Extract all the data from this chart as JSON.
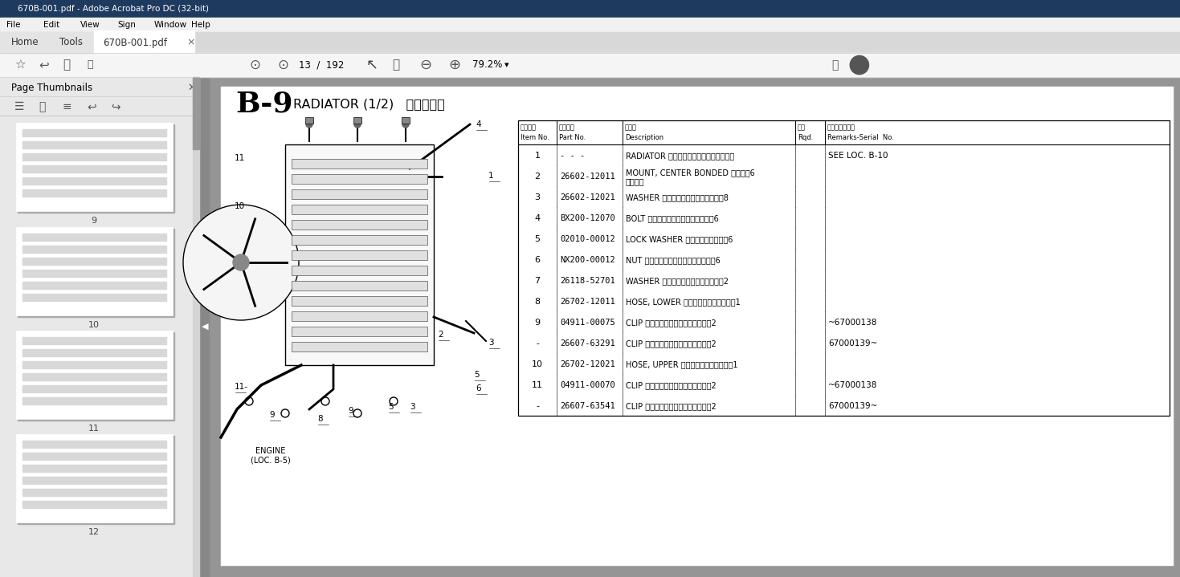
{
  "title_bar": "670B-001.pdf - Adobe Acrobat Pro DC (32-bit)",
  "tab_filename": "670B-001.pdf",
  "menu_items": [
    "File",
    "Edit",
    "View",
    "Sign",
    "Window",
    "Help"
  ],
  "page_info": "13  /  192",
  "zoom_level": "79.2%",
  "section_id": "B-9",
  "section_title": "RADIATOR (1/2)",
  "section_title_jp": "ラジエータ",
  "parts": [
    {
      "item": "1",
      "part": "- - -",
      "desc": "RADIATOR ラジエータ・・・・・・・・・",
      "qty": "",
      "remarks": "SEE LOC. B-10"
    },
    {
      "item": "2",
      "part": "26602-12011",
      "desc": "MOUNT, CENTER BONDED ・・・・6\nマウント",
      "qty": "",
      "remarks": ""
    },
    {
      "item": "3",
      "part": "26602-12021",
      "desc": "WASHER ワッシャ・・・・・・・・・8",
      "qty": "",
      "remarks": ""
    },
    {
      "item": "4",
      "part": "BX200-12070",
      "desc": "BOLT ボルト・・・・・・・・・・・6",
      "qty": "",
      "remarks": ""
    },
    {
      "item": "5",
      "part": "02010-00012",
      "desc": "LOCK WASHER ワッシャ・・・・・6",
      "qty": "",
      "remarks": ""
    },
    {
      "item": "6",
      "part": "NX200-00012",
      "desc": "NUT ナット・・・・・・・・・・・・6",
      "qty": "",
      "remarks": ""
    },
    {
      "item": "7",
      "part": "26118-52701",
      "desc": "WASHER ワッシャ・・・・・・・・・2",
      "qty": "",
      "remarks": ""
    },
    {
      "item": "8",
      "part": "26702-12011",
      "desc": "HOSE, LOWER ホース・・・・・・・・1",
      "qty": "",
      "remarks": ""
    },
    {
      "item": "9",
      "part": "04911-00075",
      "desc": "CLIP クリップ・・・・・・・・・・2",
      "qty": "",
      "remarks": "~67000138"
    },
    {
      "item": "-",
      "part": "26607-63291",
      "desc": "CLIP クリップ・・・・・・・・・・2",
      "qty": "",
      "remarks": "67000139~"
    },
    {
      "item": "10",
      "part": "26702-12021",
      "desc": "HOSE, UPPER ホース・・・・・・・・1",
      "qty": "",
      "remarks": ""
    },
    {
      "item": "11",
      "part": "04911-00070",
      "desc": "CLIP クリップ・・・・・・・・・・2",
      "qty": "",
      "remarks": "~67000138"
    },
    {
      "item": "-",
      "part": "26607-63541",
      "desc": "CLIP クリップ・・・・・・・・・・2",
      "qty": "",
      "remarks": "67000139~"
    }
  ],
  "bg_color": "#f0f0f0",
  "sidebar_bg": "#e8e8e8",
  "page_bg": "#ffffff",
  "titlebar_color": "#1e3a5f"
}
